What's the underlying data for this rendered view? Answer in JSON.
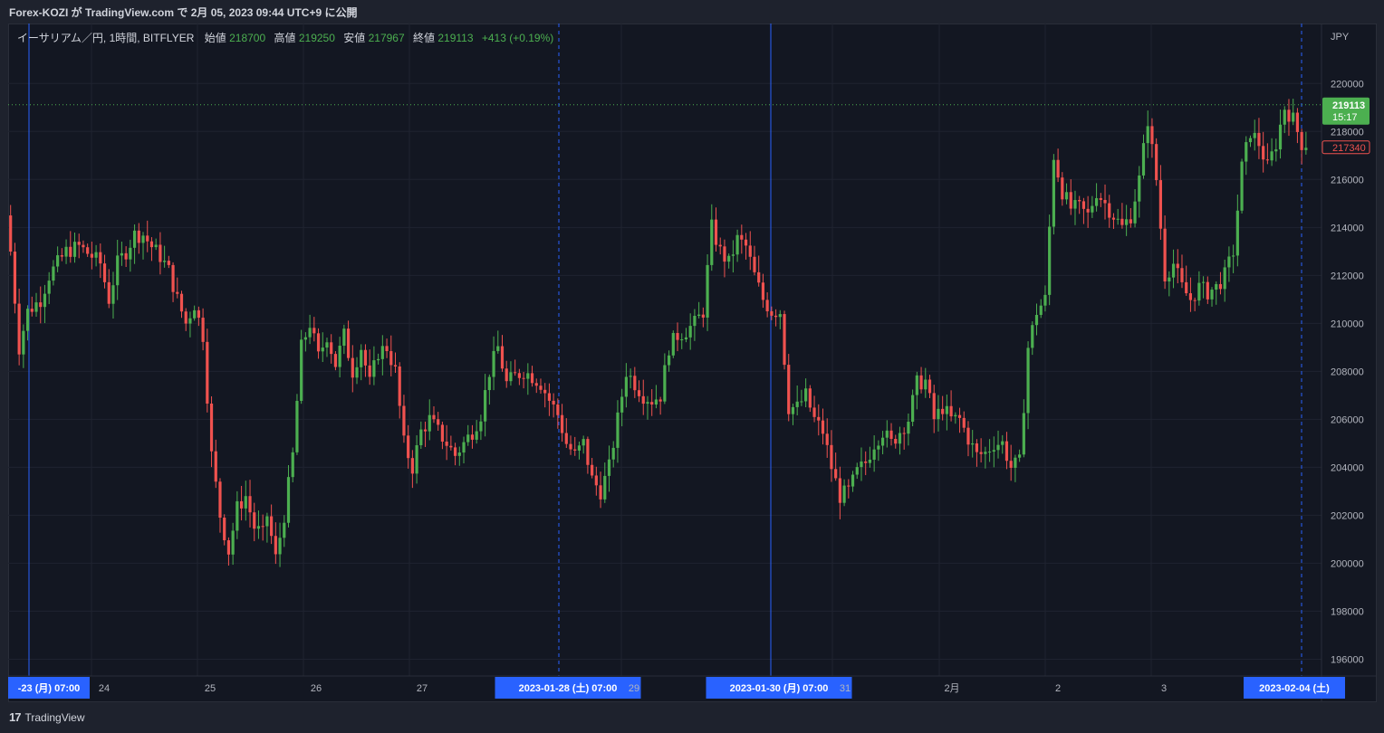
{
  "header": {
    "publish_line": "Forex-KOZI が TradingView.com で 2月 05, 2023 09:44 UTC+9 に公開"
  },
  "legend": {
    "symbol": "イーサリアム／円, 1時間, BITFLYER",
    "open_label": "始値",
    "open_value": "218700",
    "high_label": "高値",
    "high_value": "219250",
    "low_label": "安値",
    "low_value": "217967",
    "close_label": "終値",
    "close_value": "219113",
    "change": "+413 (+0.19%)"
  },
  "axis": {
    "currency": "JPY",
    "price_ticks": [
      "220000",
      "218000",
      "216000",
      "214000",
      "212000",
      "210000",
      "208000",
      "206000",
      "204000",
      "202000",
      "200000",
      "198000",
      "196000"
    ],
    "last_price": "219113",
    "countdown": "15:17",
    "prev_close": "217340"
  },
  "time_axis": {
    "labels": [
      {
        "text": "-23 (月)  07:00",
        "hl": true
      },
      {
        "text": "24",
        "hl": false
      },
      {
        "text": "25",
        "hl": false
      },
      {
        "text": "26",
        "hl": false
      },
      {
        "text": "27",
        "hl": false
      },
      {
        "text": "2023-01-28 (土)  07:00",
        "hl": true
      },
      {
        "text": "29",
        "hl": false
      },
      {
        "text": "2023-01-30 (月)  07:00",
        "hl": true
      },
      {
        "text": "31",
        "hl": false
      },
      {
        "text": "2月",
        "hl": false
      },
      {
        "text": "2",
        "hl": false
      },
      {
        "text": "3",
        "hl": false
      },
      {
        "text": "2023-02-04 (土)",
        "hl": true
      }
    ]
  },
  "footer": {
    "brand": "TradingView",
    "brand_mark": "17"
  },
  "colors": {
    "up": "#4caf50",
    "down": "#f0524f",
    "background": "#131722",
    "grid": "#1f2330",
    "marker_line": "#2962ff"
  },
  "chart_data": {
    "type": "candlestick",
    "title": "イーサリアム／円, 1時間, BITFLYER",
    "ylabel": "JPY",
    "ylim": [
      195300,
      222500
    ],
    "grid": true,
    "legend": "top-left",
    "anchors_hours_vs_price": [
      [
        0,
        214500
      ],
      [
        1,
        213000
      ],
      [
        3,
        209000
      ],
      [
        5,
        210500
      ],
      [
        8,
        211000
      ],
      [
        10,
        212000
      ],
      [
        14,
        213000
      ],
      [
        17,
        213200
      ],
      [
        20,
        212800
      ],
      [
        22,
        212500
      ],
      [
        24,
        211000
      ],
      [
        26,
        212500
      ],
      [
        28,
        213000
      ],
      [
        30,
        213700
      ],
      [
        32,
        213700
      ],
      [
        34,
        213200
      ],
      [
        36,
        212800
      ],
      [
        38,
        212200
      ],
      [
        40,
        211000
      ],
      [
        42,
        210000
      ],
      [
        44,
        210800
      ],
      [
        46,
        209500
      ],
      [
        48,
        204500
      ],
      [
        50,
        202000
      ],
      [
        52,
        200500
      ],
      [
        54,
        202300
      ],
      [
        56,
        202800
      ],
      [
        58,
        201500
      ],
      [
        60,
        201200
      ],
      [
        61,
        202000
      ],
      [
        63,
        200200
      ],
      [
        65,
        202000
      ],
      [
        67,
        204500
      ],
      [
        69,
        209000
      ],
      [
        71,
        210000
      ],
      [
        73,
        208600
      ],
      [
        75,
        209500
      ],
      [
        77,
        208300
      ],
      [
        79,
        209500
      ],
      [
        81,
        208000
      ],
      [
        83,
        209000
      ],
      [
        85,
        207500
      ],
      [
        87,
        208800
      ],
      [
        89,
        209000
      ],
      [
        91,
        208000
      ],
      [
        93,
        205000
      ],
      [
        95,
        204000
      ],
      [
        97,
        205500
      ],
      [
        99,
        206000
      ],
      [
        101,
        205500
      ],
      [
        103,
        205000
      ],
      [
        105,
        204500
      ],
      [
        107,
        205000
      ],
      [
        109,
        205500
      ],
      [
        111,
        206200
      ],
      [
        113,
        208000
      ],
      [
        115,
        209000
      ],
      [
        117,
        207500
      ],
      [
        119,
        207800
      ],
      [
        121,
        208000
      ],
      [
        123,
        207800
      ],
      [
        125,
        207500
      ],
      [
        127,
        206800
      ],
      [
        129,
        206200
      ],
      [
        131,
        205000
      ],
      [
        133,
        204500
      ],
      [
        135,
        205000
      ],
      [
        137,
        203500
      ],
      [
        139,
        203000
      ],
      [
        141,
        204000
      ],
      [
        143,
        206000
      ],
      [
        145,
        208000
      ],
      [
        147,
        207500
      ],
      [
        149,
        207000
      ],
      [
        151,
        206800
      ],
      [
        153,
        207000
      ],
      [
        155,
        209000
      ],
      [
        157,
        209500
      ],
      [
        159,
        209700
      ],
      [
        161,
        210000
      ],
      [
        163,
        210500
      ],
      [
        165,
        214000
      ],
      [
        167,
        213000
      ],
      [
        169,
        212500
      ],
      [
        171,
        213500
      ],
      [
        173,
        213200
      ],
      [
        175,
        212000
      ],
      [
        177,
        211000
      ],
      [
        179,
        210500
      ],
      [
        181,
        210500
      ],
      [
        183,
        206500
      ],
      [
        185,
        206500
      ],
      [
        187,
        207000
      ],
      [
        189,
        206000
      ],
      [
        191,
        205500
      ],
      [
        193,
        204000
      ],
      [
        195,
        202800
      ],
      [
        197,
        203000
      ],
      [
        199,
        203800
      ],
      [
        201,
        204200
      ],
      [
        203,
        205000
      ],
      [
        205,
        205500
      ],
      [
        207,
        205000
      ],
      [
        209,
        205500
      ],
      [
        211,
        206000
      ],
      [
        213,
        207500
      ],
      [
        215,
        207600
      ],
      [
        217,
        206000
      ],
      [
        219,
        206500
      ],
      [
        221,
        206000
      ],
      [
        223,
        206000
      ],
      [
        225,
        205200
      ],
      [
        227,
        204500
      ],
      [
        229,
        204600
      ],
      [
        231,
        205000
      ],
      [
        233,
        205000
      ],
      [
        235,
        204000
      ],
      [
        237,
        204200
      ],
      [
        239,
        209000
      ],
      [
        241,
        210500
      ],
      [
        243,
        211000
      ],
      [
        245,
        217000
      ],
      [
        247,
        215500
      ],
      [
        249,
        214800
      ],
      [
        251,
        214800
      ],
      [
        253,
        214500
      ],
      [
        255,
        215500
      ],
      [
        257,
        215000
      ],
      [
        259,
        214500
      ],
      [
        261,
        214000
      ],
      [
        263,
        214500
      ],
      [
        265,
        216000
      ],
      [
        267,
        218500
      ],
      [
        269,
        216000
      ],
      [
        271,
        212000
      ],
      [
        273,
        212500
      ],
      [
        275,
        211500
      ],
      [
        277,
        211000
      ],
      [
        279,
        211500
      ],
      [
        281,
        211300
      ],
      [
        283,
        211500
      ],
      [
        285,
        212000
      ],
      [
        287,
        213000
      ],
      [
        289,
        216500
      ],
      [
        291,
        218000
      ],
      [
        293,
        217500
      ],
      [
        295,
        216500
      ],
      [
        297,
        217500
      ],
      [
        299,
        219000
      ],
      [
        301,
        218500
      ],
      [
        303,
        217500
      ]
    ]
  }
}
